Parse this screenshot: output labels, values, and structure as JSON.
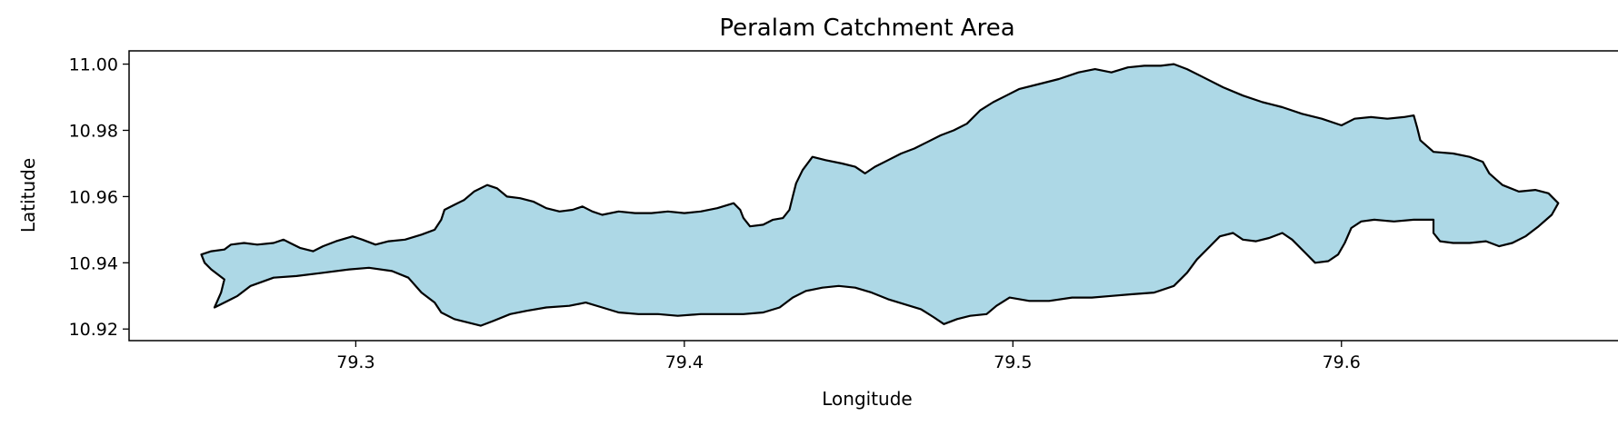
{
  "title": "Peralam Catchment Area",
  "chart_data": {
    "type": "map-polygon",
    "title": "Peralam Catchment Area",
    "xlabel": "Longitude",
    "ylabel": "Latitude",
    "xlim": [
      79.231,
      79.685
    ],
    "ylim": [
      10.9165,
      11.004
    ],
    "xticks": [
      79.3,
      79.4,
      79.5,
      79.6
    ],
    "yticks": [
      10.92,
      10.94,
      10.96,
      10.98,
      11.0
    ],
    "xtick_labels": [
      "79.3",
      "79.4",
      "79.5",
      "79.6"
    ],
    "ytick_labels": [
      "10.92",
      "10.94",
      "10.96",
      "10.98",
      "11.00"
    ],
    "grid": false,
    "fill_color": "#add8e6",
    "edge_color": "#000000",
    "boundary": [
      [
        79.253,
        10.9425
      ],
      [
        79.256,
        10.9435
      ],
      [
        79.26,
        10.944
      ],
      [
        79.262,
        10.9455
      ],
      [
        79.266,
        10.946
      ],
      [
        79.27,
        10.9455
      ],
      [
        79.275,
        10.946
      ],
      [
        79.278,
        10.947
      ],
      [
        79.28,
        10.946
      ],
      [
        79.283,
        10.9445
      ],
      [
        79.287,
        10.9435
      ],
      [
        79.29,
        10.945
      ],
      [
        79.294,
        10.9465
      ],
      [
        79.299,
        10.948
      ],
      [
        79.302,
        10.947
      ],
      [
        79.306,
        10.9455
      ],
      [
        79.31,
        10.9465
      ],
      [
        79.315,
        10.947
      ],
      [
        79.32,
        10.9485
      ],
      [
        79.324,
        10.95
      ],
      [
        79.326,
        10.953
      ],
      [
        79.327,
        10.956
      ],
      [
        79.33,
        10.9575
      ],
      [
        79.333,
        10.959
      ],
      [
        79.336,
        10.9615
      ],
      [
        79.34,
        10.9635
      ],
      [
        79.343,
        10.9625
      ],
      [
        79.346,
        10.96
      ],
      [
        79.35,
        10.9595
      ],
      [
        79.354,
        10.9585
      ],
      [
        79.358,
        10.9565
      ],
      [
        79.362,
        10.9555
      ],
      [
        79.366,
        10.956
      ],
      [
        79.369,
        10.957
      ],
      [
        79.372,
        10.9555
      ],
      [
        79.375,
        10.9545
      ],
      [
        79.38,
        10.9555
      ],
      [
        79.385,
        10.955
      ],
      [
        79.39,
        10.955
      ],
      [
        79.395,
        10.9555
      ],
      [
        79.4,
        10.955
      ],
      [
        79.405,
        10.9555
      ],
      [
        79.41,
        10.9565
      ],
      [
        79.415,
        10.958
      ],
      [
        79.417,
        10.956
      ],
      [
        79.418,
        10.9535
      ],
      [
        79.42,
        10.951
      ],
      [
        79.424,
        10.9515
      ],
      [
        79.427,
        10.953
      ],
      [
        79.43,
        10.9535
      ],
      [
        79.432,
        10.956
      ],
      [
        79.433,
        10.96
      ],
      [
        79.434,
        10.964
      ],
      [
        79.436,
        10.968
      ],
      [
        79.439,
        10.972
      ],
      [
        79.443,
        10.971
      ],
      [
        79.448,
        10.97
      ],
      [
        79.452,
        10.969
      ],
      [
        79.455,
        10.967
      ],
      [
        79.458,
        10.969
      ],
      [
        79.462,
        10.971
      ],
      [
        79.466,
        10.973
      ],
      [
        79.47,
        10.9745
      ],
      [
        79.474,
        10.9765
      ],
      [
        79.478,
        10.9785
      ],
      [
        79.482,
        10.98
      ],
      [
        79.486,
        10.982
      ],
      [
        79.49,
        10.986
      ],
      [
        79.494,
        10.9885
      ],
      [
        79.498,
        10.9905
      ],
      [
        79.502,
        10.9925
      ],
      [
        79.508,
        10.994
      ],
      [
        79.514,
        10.9955
      ],
      [
        79.52,
        10.9975
      ],
      [
        79.525,
        10.9985
      ],
      [
        79.53,
        10.9975
      ],
      [
        79.535,
        10.999
      ],
      [
        79.54,
        10.9995
      ],
      [
        79.545,
        10.9995
      ],
      [
        79.549,
        11.0
      ],
      [
        79.553,
        10.9985
      ],
      [
        79.558,
        10.996
      ],
      [
        79.564,
        10.993
      ],
      [
        79.57,
        10.9905
      ],
      [
        79.576,
        10.9885
      ],
      [
        79.582,
        10.987
      ],
      [
        79.588,
        10.985
      ],
      [
        79.594,
        10.9835
      ],
      [
        79.6,
        10.9815
      ],
      [
        79.604,
        10.9835
      ],
      [
        79.609,
        10.984
      ],
      [
        79.614,
        10.9835
      ],
      [
        79.619,
        10.984
      ],
      [
        79.622,
        10.9845
      ],
      [
        79.623,
        10.981
      ],
      [
        79.624,
        10.977
      ],
      [
        79.628,
        10.9735
      ],
      [
        79.634,
        10.973
      ],
      [
        79.639,
        10.972
      ],
      [
        79.643,
        10.9705
      ],
      [
        79.645,
        10.967
      ],
      [
        79.649,
        10.9635
      ],
      [
        79.654,
        10.9615
      ],
      [
        79.659,
        10.962
      ],
      [
        79.663,
        10.961
      ],
      [
        79.666,
        10.958
      ],
      [
        79.664,
        10.9545
      ],
      [
        79.66,
        10.951
      ],
      [
        79.656,
        10.948
      ],
      [
        79.652,
        10.946
      ],
      [
        79.648,
        10.945
      ],
      [
        79.644,
        10.9465
      ],
      [
        79.639,
        10.946
      ],
      [
        79.634,
        10.946
      ],
      [
        79.63,
        10.9465
      ],
      [
        79.628,
        10.949
      ],
      [
        79.628,
        10.953
      ],
      [
        79.622,
        10.953
      ],
      [
        79.616,
        10.9525
      ],
      [
        79.61,
        10.953
      ],
      [
        79.606,
        10.9525
      ],
      [
        79.603,
        10.9505
      ],
      [
        79.601,
        10.946
      ],
      [
        79.599,
        10.9425
      ],
      [
        79.596,
        10.9405
      ],
      [
        79.592,
        10.94
      ],
      [
        79.589,
        10.943
      ],
      [
        79.585,
        10.947
      ],
      [
        79.582,
        10.949
      ],
      [
        79.578,
        10.9475
      ],
      [
        79.574,
        10.9465
      ],
      [
        79.57,
        10.947
      ],
      [
        79.567,
        10.949
      ],
      [
        79.563,
        10.948
      ],
      [
        79.56,
        10.945
      ],
      [
        79.556,
        10.941
      ],
      [
        79.553,
        10.937
      ],
      [
        79.549,
        10.933
      ],
      [
        79.543,
        10.931
      ],
      [
        79.536,
        10.9305
      ],
      [
        79.53,
        10.93
      ],
      [
        79.524,
        10.9295
      ],
      [
        79.518,
        10.9295
      ],
      [
        79.511,
        10.9285
      ],
      [
        79.505,
        10.9285
      ],
      [
        79.499,
        10.9295
      ],
      [
        79.495,
        10.927
      ],
      [
        79.492,
        10.9245
      ],
      [
        79.487,
        10.924
      ],
      [
        79.483,
        10.923
      ],
      [
        79.479,
        10.9215
      ],
      [
        79.476,
        10.9235
      ],
      [
        79.472,
        10.926
      ],
      [
        79.467,
        10.9275
      ],
      [
        79.462,
        10.929
      ],
      [
        79.457,
        10.931
      ],
      [
        79.452,
        10.9325
      ],
      [
        79.447,
        10.933
      ],
      [
        79.442,
        10.9325
      ],
      [
        79.437,
        10.9315
      ],
      [
        79.433,
        10.9295
      ],
      [
        79.429,
        10.9265
      ],
      [
        79.424,
        10.925
      ],
      [
        79.418,
        10.9245
      ],
      [
        79.412,
        10.9245
      ],
      [
        79.405,
        10.9245
      ],
      [
        79.398,
        10.924
      ],
      [
        79.392,
        10.9245
      ],
      [
        79.386,
        10.9245
      ],
      [
        79.38,
        10.925
      ],
      [
        79.375,
        10.9265
      ],
      [
        79.37,
        10.928
      ],
      [
        79.365,
        10.927
      ],
      [
        79.358,
        10.9265
      ],
      [
        79.352,
        10.9255
      ],
      [
        79.347,
        10.9245
      ],
      [
        79.342,
        10.9225
      ],
      [
        79.338,
        10.921
      ],
      [
        79.334,
        10.922
      ],
      [
        79.33,
        10.923
      ],
      [
        79.326,
        10.925
      ],
      [
        79.324,
        10.928
      ],
      [
        79.32,
        10.931
      ],
      [
        79.316,
        10.9355
      ],
      [
        79.311,
        10.9375
      ],
      [
        79.304,
        10.9385
      ],
      [
        79.298,
        10.938
      ],
      [
        79.29,
        10.937
      ],
      [
        79.282,
        10.936
      ],
      [
        79.275,
        10.9355
      ],
      [
        79.268,
        10.933
      ],
      [
        79.264,
        10.93
      ],
      [
        79.26,
        10.928
      ],
      [
        79.257,
        10.9265
      ],
      [
        79.259,
        10.931
      ],
      [
        79.26,
        10.935
      ],
      [
        79.256,
        10.938
      ],
      [
        79.254,
        10.94
      ]
    ]
  }
}
